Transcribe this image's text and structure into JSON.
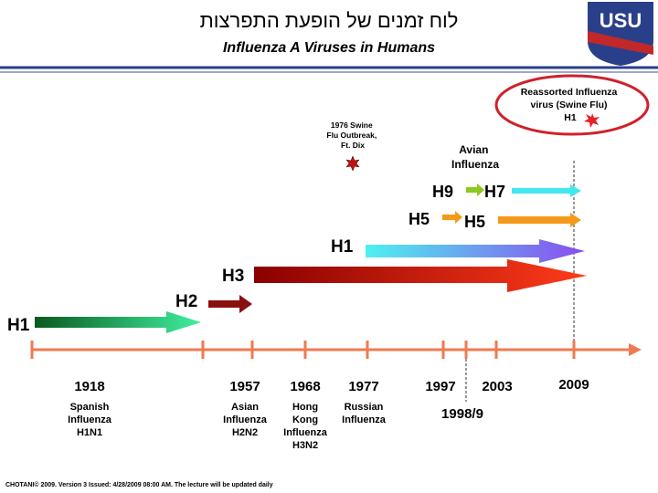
{
  "header": {
    "title": "לוח זמנים של הופעת התפרצות",
    "subtitle": "Influenza A Viruses in Humans",
    "logo": "USU"
  },
  "callouts": {
    "reassorted": [
      "Reassorted Influenza",
      "virus (Swine Flu)",
      "H1"
    ],
    "fort_dix": [
      "1976 Swine",
      "Flu Outbreak,",
      "Ft. Dix"
    ],
    "avian": [
      "Avian",
      "Influenza"
    ]
  },
  "arrows": [
    {
      "label": "H1"
    },
    {
      "label": "H2"
    },
    {
      "label": "H3"
    },
    {
      "label": "H1"
    },
    {
      "label": "H5"
    },
    {
      "label": "H5"
    },
    {
      "label": "H9"
    },
    {
      "label": "H7"
    }
  ],
  "timeline": [
    {
      "year": "1918",
      "description": [
        "Spanish",
        "Influenza",
        "H1N1"
      ]
    },
    {
      "year": "1957",
      "description": [
        "Asian",
        "Influenza",
        "H2N2"
      ]
    },
    {
      "year": "1968",
      "description": [
        "Hong",
        "Kong",
        "Influenza",
        "H3N2"
      ]
    },
    {
      "year": "1977",
      "description": [
        "Russian",
        "Influenza"
      ]
    },
    {
      "year": "1997",
      "description": []
    },
    {
      "year": "1998/9",
      "description": []
    },
    {
      "year": "2003",
      "description": []
    },
    {
      "year": "2009",
      "description": []
    }
  ],
  "footer": "CHOTANI© 2009. Version 3 Issued: 4/28/2009 08:00 AM. The lecture will be updated daily"
}
